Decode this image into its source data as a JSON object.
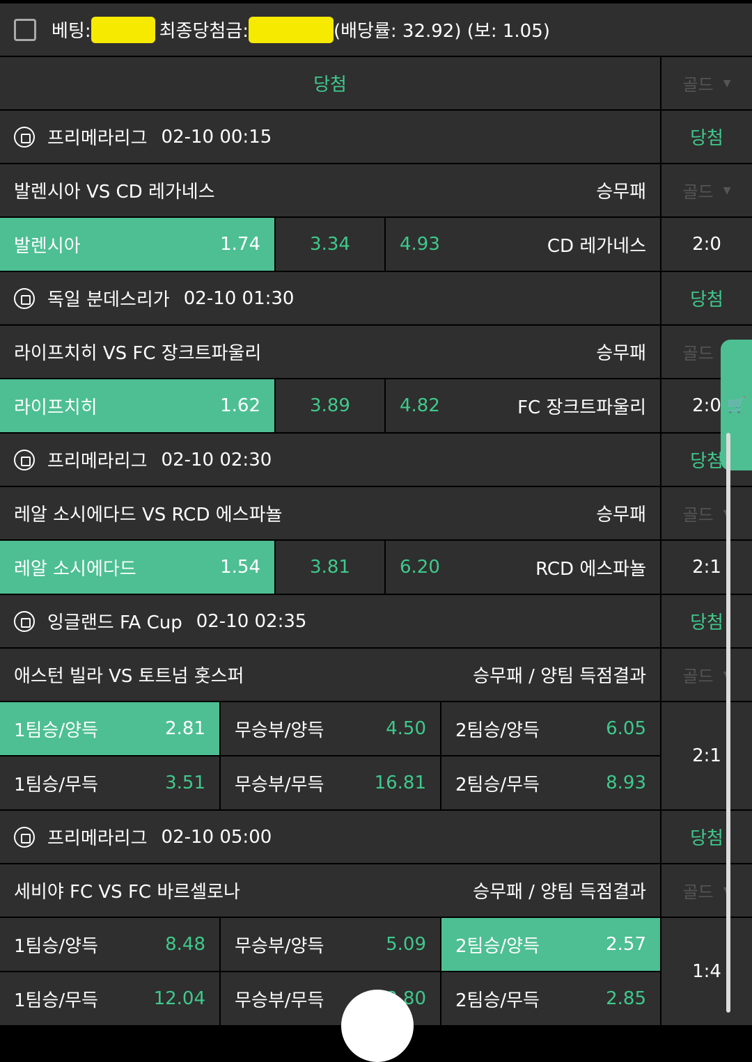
{
  "header": {
    "bet_label": "베팅:",
    "final_win_label": "최종당첨금:",
    "odds_text": "(배당률: 32.92) (보: 1.05)"
  },
  "result_row": {
    "status": "당첨",
    "gold": "골드"
  },
  "games": [
    {
      "league": "프리메라리그",
      "time": "02-10 00:15",
      "status": "당첨",
      "match": "발렌시아 VS CD 레가네스",
      "market": "승무패",
      "gold": "골드",
      "type": "1x2",
      "home": "발렌시아",
      "home_odd": "1.74",
      "draw_odd": "3.34",
      "away_odd": "4.93",
      "away": "CD 레가네스",
      "selected": 0,
      "score": "2:0"
    },
    {
      "league": "독일 분데스리가",
      "time": "02-10 01:30",
      "status": "당첨",
      "match": "라이프치히 VS FC 장크트파울리",
      "market": "승무패",
      "gold": "골드",
      "type": "1x2",
      "home": "라이프치히",
      "home_odd": "1.62",
      "draw_odd": "3.89",
      "away_odd": "4.82",
      "away": "FC 장크트파울리",
      "selected": 0,
      "score": "2:0"
    },
    {
      "league": "프리메라리그",
      "time": "02-10 02:30",
      "status": "당첨",
      "match": "레알 소시에다드 VS RCD 에스파뇰",
      "market": "승무패",
      "gold": "골드",
      "type": "1x2",
      "home": "레알 소시에다드",
      "home_odd": "1.54",
      "draw_odd": "3.81",
      "away_odd": "6.20",
      "away": "RCD 에스파뇰",
      "selected": 0,
      "score": "2:1"
    },
    {
      "league": "잉글랜드 FA Cup",
      "time": "02-10 02:35",
      "status": "당첨",
      "match": "애스턴 빌라 VS 토트넘 홋스퍼",
      "market": "승무패 / 양팀 득점결과",
      "gold": "골드",
      "type": "combo",
      "options": [
        {
          "label": "1팀승/양득",
          "odd": "2.81"
        },
        {
          "label": "무승부/양득",
          "odd": "4.50"
        },
        {
          "label": "2팀승/양득",
          "odd": "6.05"
        },
        {
          "label": "1팀승/무득",
          "odd": "3.51"
        },
        {
          "label": "무승부/무득",
          "odd": "16.81"
        },
        {
          "label": "2팀승/무득",
          "odd": "8.93"
        }
      ],
      "selected": 0,
      "score": "2:1"
    },
    {
      "league": "프리메라리그",
      "time": "02-10 05:00",
      "status": "당첨",
      "match": "세비야 FC VS FC 바르셀로나",
      "market": "승무패 / 양팀 득점결과",
      "gold": "골드",
      "type": "combo",
      "options": [
        {
          "label": "1팀승/양득",
          "odd": "8.48"
        },
        {
          "label": "무승부/양득",
          "odd": "5.09"
        },
        {
          "label": "2팀승/양득",
          "odd": "2.57"
        },
        {
          "label": "1팀승/무득",
          "odd": "12.04"
        },
        {
          "label": "무승부/무득",
          "odd": "18.80"
        },
        {
          "label": "2팀승/무득",
          "odd": "2.85"
        }
      ],
      "selected": 2,
      "score": "1:4"
    }
  ],
  "colors": {
    "accent": "#4dbf93",
    "win_text": "#3fc98c",
    "background": "#2f2f2f"
  },
  "icons": {
    "league": "soccer-ball-icon",
    "cart": "shopping-cart-icon",
    "dropdown": "caret-down-icon"
  }
}
